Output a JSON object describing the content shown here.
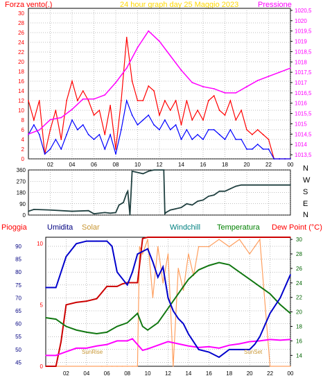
{
  "header": {
    "wind_title": "Forza vento(.)",
    "graph_title": "24 hour graph day   25 Maggio 2023",
    "pressure_title": "Pressione"
  },
  "bottom_labels": {
    "rain": "Pioggia",
    "humidity": "Umidita",
    "solar": "Solar",
    "windchill": "Windchill",
    "temperature": "Temperatura",
    "dewpoint": "Dew Point (°C)"
  },
  "annotations": {
    "sunrise": "SunRise",
    "sunset": "SunSet"
  },
  "colors": {
    "background": "#ffffff",
    "grid": "#7f7f7f",
    "axis": "#000000",
    "left_ticks_red": "#ff0000",
    "right_ticks_magenta": "#ff00ff",
    "wind_gust": "#ff0000",
    "wind_avg": "#0000ff",
    "pressure": "#ff00ff",
    "direction": "#1f3f3f",
    "rain": "#cc0000",
    "humidity": "#0000cc",
    "solar": "#ff9f5f",
    "temperature": "#117711",
    "dewpoint": "#ff00ff",
    "rain_label": "#ff0000",
    "humidity_label": "#000080",
    "solar_label": "#c89632",
    "windchill_label": "#008080",
    "temperature_label": "#008000",
    "dewpoint_label": "#ff0000"
  },
  "chart_data": [
    {
      "type": "line",
      "id": "wind_pressure",
      "x_ticks": [
        "02",
        "04",
        "06",
        "08",
        "10",
        "12",
        "14",
        "16",
        "18",
        "20",
        "22",
        "00"
      ],
      "y_left_ticks": [
        "0",
        "2",
        "4",
        "6",
        "8",
        "10",
        "12",
        "14",
        "16",
        "18",
        "20",
        "22",
        "24",
        "26",
        "28",
        "30"
      ],
      "y_left_range": [
        0,
        31
      ],
      "y_right_ticks": [
        "1013,5",
        "1014",
        "1014,5",
        "1015",
        "1015,5",
        "1016",
        "1016,5",
        "1017",
        "1017,5",
        "1018",
        "1018,5",
        "1019",
        "1019,5",
        "1020",
        "1020,5"
      ],
      "y_right_range": [
        1013.3,
        1020.6
      ],
      "x_range": [
        0,
        24
      ],
      "series": [
        {
          "key": "gust",
          "x": [
            0,
            0.5,
            1,
            1.5,
            2,
            2.5,
            3,
            3.5,
            4,
            4.5,
            5,
            5.5,
            6,
            6.5,
            7,
            7.5,
            8,
            8.5,
            9,
            9.5,
            10,
            10.5,
            11,
            11.5,
            12,
            12.5,
            13,
            13.5,
            14,
            14.5,
            15,
            15.5,
            16,
            16.5,
            17,
            17.5,
            18,
            18.5,
            19,
            19.5,
            20,
            20.5,
            21,
            21.5,
            22,
            22.5,
            23,
            23.5,
            24
          ],
          "values": [
            12,
            8,
            12,
            1,
            6,
            10,
            4,
            12,
            16,
            12,
            14,
            12,
            9,
            10,
            5,
            11,
            2,
            12,
            25,
            16,
            12,
            12,
            15,
            14,
            9,
            12,
            10,
            12,
            7,
            12,
            8,
            10,
            8,
            12,
            13,
            10,
            9,
            12,
            8,
            10,
            6,
            5,
            6,
            5,
            4,
            0,
            0,
            0,
            0
          ]
        },
        {
          "key": "avg",
          "x": [
            0,
            0.5,
            1,
            1.5,
            2,
            2.5,
            3,
            3.5,
            4,
            4.5,
            5,
            5.5,
            6,
            6.5,
            7,
            7.5,
            8,
            8.5,
            9,
            9.5,
            10,
            10.5,
            11,
            11.5,
            12,
            12.5,
            13,
            13.5,
            14,
            14.5,
            15,
            15.5,
            16,
            16.5,
            17,
            17.5,
            18,
            18.5,
            19,
            19.5,
            20,
            20.5,
            21,
            21.5,
            22,
            22.5,
            23,
            23.5,
            24
          ],
          "values": [
            5,
            7,
            5,
            1,
            2,
            4,
            2,
            5,
            8,
            6,
            7,
            5,
            4,
            5,
            2,
            5,
            1,
            6,
            12,
            9,
            7,
            8,
            9,
            7,
            6,
            8,
            6,
            7,
            4,
            6,
            4,
            5,
            4,
            6,
            6,
            5,
            4,
            6,
            4,
            4,
            2,
            2,
            3,
            2,
            2,
            0,
            0,
            0,
            0
          ]
        },
        {
          "key": "pressure",
          "x": [
            0,
            1,
            2,
            3,
            4,
            5,
            6,
            7,
            8,
            9,
            10,
            11,
            12,
            13,
            14,
            15,
            16,
            17,
            18,
            19,
            20,
            21,
            22,
            23,
            24
          ],
          "values": [
            1014.5,
            1014.7,
            1015.2,
            1015.3,
            1015.7,
            1016.2,
            1016.2,
            1016.4,
            1017.0,
            1017.7,
            1018.7,
            1019.5,
            1019.0,
            1018.3,
            1017.6,
            1017.0,
            1016.8,
            1016.7,
            1016.5,
            1016.5,
            1016.8,
            1017.1,
            1017.3,
            1017.5,
            1017.7
          ]
        }
      ]
    },
    {
      "type": "line",
      "id": "direction",
      "x_range": [
        0,
        24
      ],
      "y_ticks": [
        "0",
        "90",
        "180",
        "270",
        "360"
      ],
      "y_range": [
        0,
        360
      ],
      "compass_labels": [
        "N",
        "W",
        "S",
        "E",
        "N"
      ],
      "series": [
        {
          "key": "direction",
          "x": [
            0,
            0.5,
            2,
            4,
            5.5,
            6,
            7,
            7.5,
            8,
            8.3,
            8.7,
            9,
            9.1,
            9.3,
            9.5,
            10,
            10.5,
            11,
            11.5,
            12,
            12.4,
            12.5,
            12.6,
            13,
            14,
            14.5,
            15,
            15.5,
            16,
            16.5,
            17,
            17.5,
            18,
            18.5,
            19,
            19.5,
            20,
            21,
            22,
            23,
            24
          ],
          "values": [
            30,
            45,
            40,
            30,
            35,
            10,
            20,
            15,
            20,
            80,
            100,
            175,
            190,
            0,
            350,
            340,
            330,
            350,
            360,
            360,
            360,
            10,
            20,
            40,
            60,
            90,
            80,
            110,
            120,
            150,
            160,
            190,
            190,
            210,
            230,
            240,
            240,
            240,
            240,
            240,
            240
          ]
        }
      ]
    },
    {
      "type": "line",
      "id": "rain_hum_temp",
      "x_range": [
        0,
        24
      ],
      "y_left_humidity_ticks": [
        "45",
        "50",
        "55",
        "60",
        "65",
        "70",
        "75",
        "80",
        "85",
        "90"
      ],
      "y_left_humidity_range": [
        43.5,
        93.5
      ],
      "y_left_rain_ticks": [
        "0",
        "5",
        "10"
      ],
      "y_left_rain_range": [
        0,
        10.5
      ],
      "y_right_ticks": [
        "14",
        "16",
        "18",
        "20",
        "22",
        "24",
        "26",
        "28",
        "30"
      ],
      "y_right_range": [
        12.5,
        30.3
      ],
      "series": [
        {
          "key": "rain",
          "x": [
            0,
            1,
            1.5,
            2,
            3,
            4,
            5,
            5.5,
            6,
            7,
            7.5,
            8,
            9,
            9.5,
            10,
            11,
            12,
            14,
            16,
            18,
            20,
            22,
            23,
            24
          ],
          "values": [
            0,
            0,
            2,
            5,
            5.2,
            5.3,
            5.5,
            6,
            6.5,
            6.5,
            6.7,
            6.8,
            6.8,
            10.4,
            10.5,
            10.5,
            10.5,
            10.5,
            10.5,
            10.5,
            10.5,
            10.5,
            10.5,
            10.5
          ]
        },
        {
          "key": "humidity",
          "x": [
            0,
            1,
            1.5,
            2,
            3,
            4,
            5,
            6,
            6.5,
            7,
            8,
            8.5,
            9,
            9.5,
            10,
            10.5,
            11,
            11.5,
            12,
            12.5,
            13,
            13.5,
            14,
            15,
            16,
            17,
            18,
            19,
            20,
            20.5,
            21,
            22,
            23,
            24
          ],
          "values": [
            74,
            74,
            80,
            86,
            91,
            92,
            92,
            92,
            90,
            80,
            75,
            80,
            87,
            88,
            89,
            84,
            78,
            82,
            70,
            65,
            62,
            60,
            56,
            50,
            49,
            47,
            50,
            50,
            50,
            52,
            55,
            64,
            70,
            79
          ]
        },
        {
          "key": "solar",
          "x": [
            0,
            5.5,
            6,
            6.5,
            7,
            7.5,
            8,
            8.5,
            9,
            9.2,
            9.5,
            10,
            10.5,
            11,
            11.5,
            12,
            12.5,
            13,
            13.5,
            14,
            14.5,
            15,
            16,
            17,
            18,
            19,
            19.5,
            20,
            20.5,
            21,
            22,
            24
          ],
          "values": [
            -9,
            -9,
            -9,
            3,
            8,
            6,
            5,
            7,
            4,
            29,
            28,
            30,
            22,
            29,
            24,
            28,
            10,
            26,
            23,
            28,
            25,
            29,
            29,
            30,
            29,
            30,
            29,
            28,
            29,
            30,
            -9,
            -9
          ]
        },
        {
          "key": "temperature",
          "x": [
            0,
            1,
            2,
            3,
            4,
            5,
            6,
            7,
            8,
            9,
            9.5,
            10,
            11,
            12,
            13,
            14,
            15,
            16,
            17,
            18,
            19,
            20,
            21,
            22,
            23,
            24
          ],
          "values": [
            19.2,
            19.0,
            18.0,
            17.5,
            17.2,
            17.0,
            17.2,
            18.0,
            18.5,
            19.8,
            18.0,
            17.5,
            18.5,
            20.5,
            22.5,
            24.5,
            25.8,
            26.4,
            26.8,
            26.5,
            25.5,
            24.5,
            23.5,
            22.5,
            21.0,
            19.8
          ]
        },
        {
          "key": "dewpoint",
          "x": [
            0,
            1,
            2,
            3,
            4,
            5,
            6,
            7,
            8,
            8.5,
            9,
            9.5,
            10,
            11,
            12,
            13,
            14,
            15,
            16,
            17,
            18,
            19,
            20,
            21,
            22,
            23,
            24
          ],
          "values": [
            14.0,
            14.0,
            14.5,
            15.0,
            15.0,
            15.3,
            15.5,
            16.0,
            16.0,
            16.3,
            15.5,
            14.7,
            14.9,
            15.4,
            15.9,
            15.6,
            15.3,
            15.1,
            15.2,
            15.0,
            15.4,
            15.6,
            15.9,
            16.0,
            16.2,
            16.1,
            16.2
          ]
        }
      ]
    }
  ]
}
